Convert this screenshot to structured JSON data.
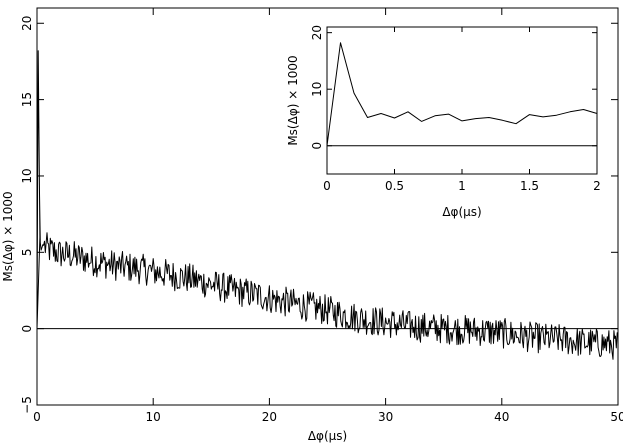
{
  "chart_data": [
    {
      "type": "line",
      "panel": "main",
      "title": "",
      "xlabel": "Δφ(μs)",
      "ylabel": "Ms(Δφ) × 1000",
      "xlim": [
        0,
        50
      ],
      "ylim": [
        -5,
        21
      ],
      "x_ticks": [
        0,
        10,
        20,
        30,
        40,
        50
      ],
      "y_ticks": [
        -5,
        0,
        5,
        10,
        15,
        20
      ],
      "x_tick_labels": [
        "0",
        "10",
        "20",
        "30",
        "40",
        "50"
      ],
      "y_tick_labels": [
        "−5",
        "0",
        "5",
        "10",
        "15",
        "20"
      ],
      "zero_line": true,
      "grid": false,
      "series": [
        {
          "style": "noisy",
          "x": [
            0.0,
            0.1,
            0.2,
            0.3,
            0.5,
            1,
            2,
            3,
            5,
            7,
            9,
            11,
            13,
            15,
            17,
            19,
            21,
            23,
            25,
            27,
            29,
            31,
            33,
            35,
            37,
            39,
            41,
            43,
            45,
            47,
            49,
            50
          ],
          "values": [
            0,
            18.2,
            9.5,
            5.0,
            5.5,
            5.2,
            4.9,
            4.8,
            4.4,
            4.1,
            3.9,
            3.6,
            3.3,
            2.9,
            2.5,
            2.2,
            1.8,
            1.5,
            1.2,
            0.8,
            0.5,
            0.3,
            0.1,
            0.0,
            -0.1,
            -0.2,
            -0.4,
            -0.6,
            -0.7,
            -0.9,
            -1.0,
            -1.1
          ]
        }
      ]
    },
    {
      "type": "line",
      "panel": "inset",
      "title": "",
      "xlabel": "Δφ(μs)",
      "ylabel": "Ms(Δφ) × 1000",
      "xlim": [
        0,
        2
      ],
      "ylim": [
        -5,
        21
      ],
      "x_ticks": [
        0,
        0.5,
        1,
        1.5,
        2
      ],
      "y_ticks": [
        0,
        10,
        20
      ],
      "x_tick_labels": [
        "0",
        "0.5",
        "1",
        "1.5",
        "2"
      ],
      "y_tick_labels": [
        "0",
        "10",
        "20"
      ],
      "zero_line": true,
      "grid": false,
      "series": [
        {
          "style": "plain",
          "x": [
            0,
            0.1,
            0.2,
            0.3,
            0.4,
            0.5,
            0.6,
            0.7,
            0.8,
            0.9,
            1.0,
            1.1,
            1.2,
            1.3,
            1.4,
            1.5,
            1.6,
            1.7,
            1.8,
            1.9,
            2.0
          ],
          "values": [
            0,
            18.2,
            9.3,
            5.0,
            5.7,
            4.9,
            6.0,
            4.3,
            5.3,
            5.6,
            4.4,
            4.8,
            5.0,
            4.5,
            3.9,
            5.5,
            5.1,
            5.4,
            6.0,
            6.4,
            5.7
          ]
        }
      ]
    }
  ]
}
